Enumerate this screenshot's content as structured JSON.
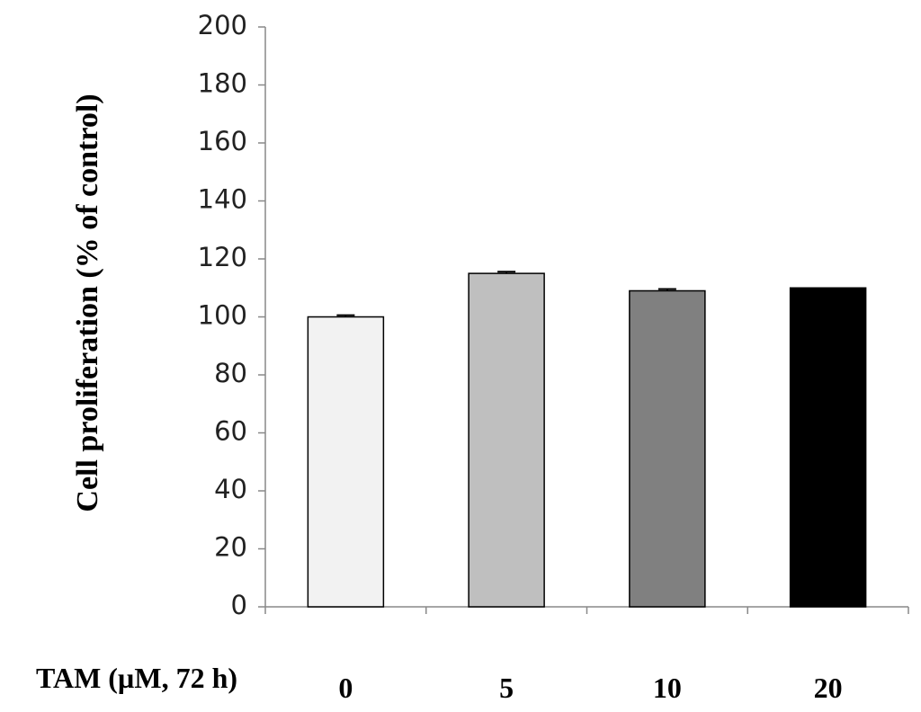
{
  "chart_data": {
    "type": "bar",
    "title": "",
    "xlabel": "TAM (µM, 72 h)",
    "ylabel": "Cell proliferation (% of control)",
    "categories": [
      "0",
      "5",
      "10",
      "20"
    ],
    "values": [
      100,
      115,
      109,
      110
    ],
    "errors": [
      0.6,
      0.6,
      0.6,
      0
    ],
    "colors": [
      "#f2f2f2",
      "#bfbfbf",
      "#808080",
      "#000000"
    ],
    "ylim": [
      0,
      200
    ],
    "yticks": [
      0,
      20,
      40,
      60,
      80,
      100,
      120,
      140,
      160,
      180,
      200
    ],
    "grid": false,
    "legend": "none"
  }
}
